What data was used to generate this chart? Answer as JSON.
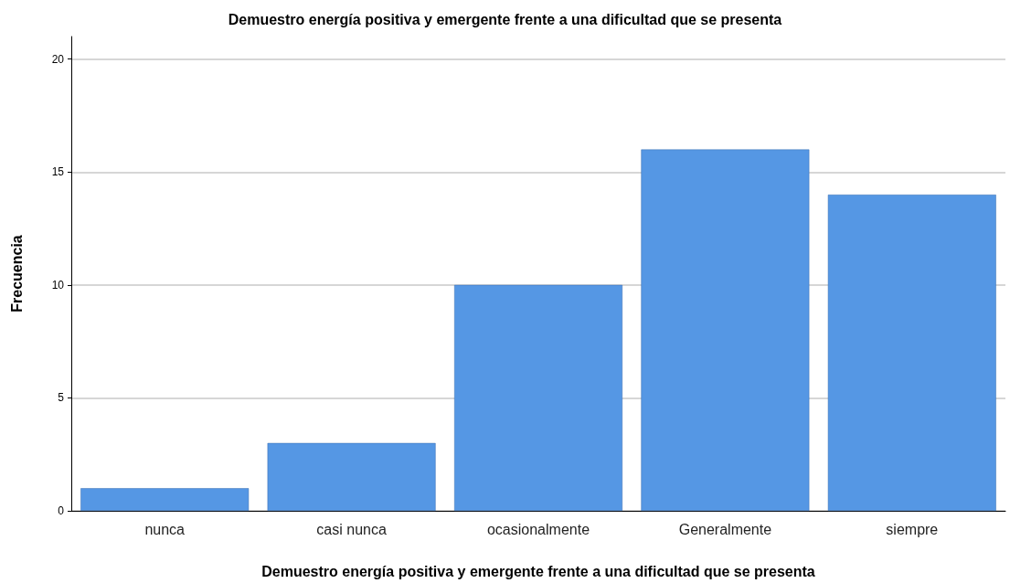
{
  "chart_data": {
    "type": "bar",
    "title": "Demuestro energía positiva y emergente frente a una dificultad que se presenta",
    "xlabel": "Demuestro energía positiva y emergente frente a una dificultad que se presenta",
    "ylabel": "Frecuencia",
    "categories": [
      "nunca",
      "casi nunca",
      "ocasionalmente",
      "Generalmente",
      "siempre"
    ],
    "values": [
      1,
      3,
      10,
      16,
      14
    ],
    "color": "#5597e4",
    "ylim": [
      0,
      21
    ],
    "yticks": [
      0,
      5,
      10,
      15,
      20
    ],
    "grid": "y"
  }
}
